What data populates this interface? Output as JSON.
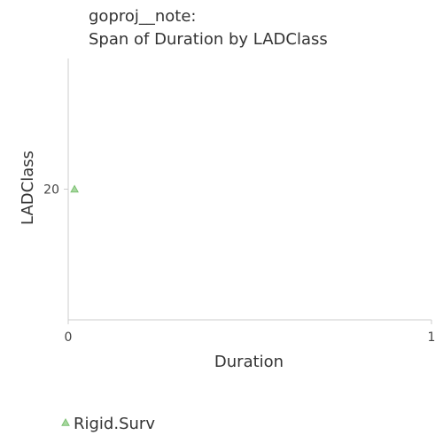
{
  "chart_data": {
    "type": "scatter",
    "title": [
      "goproj__note:",
      "Span of Duration by LADClass"
    ],
    "xlabel": "Duration",
    "ylabel": "LADClass",
    "xlim": [
      0,
      1
    ],
    "ylim": [
      0,
      40
    ],
    "x_ticks": [
      {
        "value": 0,
        "label": "0"
      },
      {
        "value": 1,
        "label": "1"
      }
    ],
    "y_ticks": [
      {
        "value": 20,
        "label": "20"
      }
    ],
    "grid": false,
    "legend_position": "bottom-left",
    "series": [
      {
        "name": "Rigid.Surv",
        "marker": "triangle",
        "color": "#a8d8a0",
        "stroke": "#7cc072",
        "points": [
          {
            "x": 0.01,
            "y": 20
          }
        ]
      }
    ]
  }
}
